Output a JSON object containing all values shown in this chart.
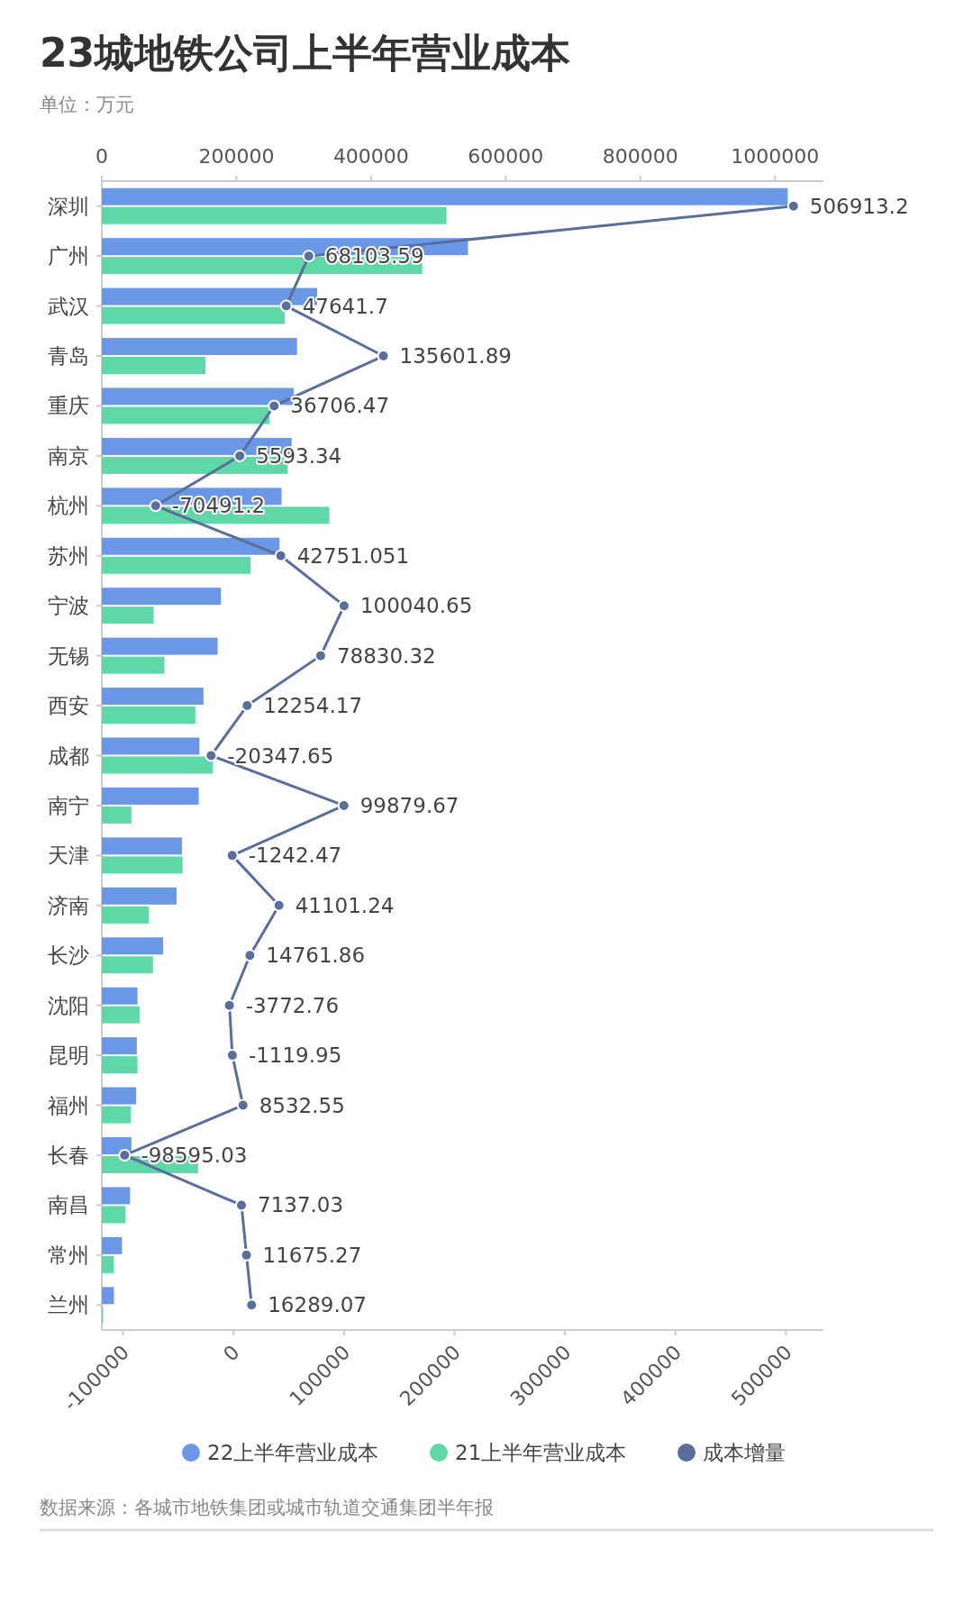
{
  "chart_data": {
    "type": "bar",
    "orientation": "horizontal",
    "title": "23城地铁公司上半年营业成本",
    "subtitle": "单位：万元",
    "categories": [
      "深圳",
      "广州",
      "武汉",
      "青岛",
      "重庆",
      "南京",
      "杭州",
      "苏州",
      "宁波",
      "无锡",
      "西安",
      "成都",
      "南宁",
      "天津",
      "济南",
      "长沙",
      "沈阳",
      "昆明",
      "福州",
      "长春",
      "南昌",
      "常州",
      "兰州"
    ],
    "series": [
      {
        "name": "22上半年营业成本",
        "color": "#6a98e6",
        "axis": "x2",
        "values": [
          1019000,
          544000,
          320000,
          290000,
          285000,
          282000,
          267000,
          264000,
          177000,
          172000,
          151000,
          145000,
          144000,
          119000,
          111000,
          91000,
          53000,
          52000,
          51000,
          44000,
          42000,
          30000,
          18000
        ]
      },
      {
        "name": "21上半年营业成本",
        "color": "#5fd8a8",
        "axis": "x2",
        "values": [
          512000,
          476000,
          272000,
          154000,
          249000,
          276000,
          338000,
          221000,
          77000,
          93000,
          139000,
          165000,
          44000,
          120000,
          70000,
          76000,
          56000,
          53000,
          43000,
          143000,
          35000,
          18000,
          2000
        ]
      },
      {
        "name": "成本增量",
        "color": "#5a6e9c",
        "type": "line",
        "values": [
          506913.2,
          68103.59,
          47641.7,
          135601.89,
          36706.47,
          5593.34,
          -70491.2,
          42751.051,
          100040.65,
          78830.32,
          12254.17,
          -20347.65,
          99879.67,
          -1242.47,
          41101.24,
          14761.86,
          -3772.76,
          -1119.95,
          8532.55,
          -98595.03,
          7137.03,
          11675.27,
          16289.07
        ],
        "value_labels": [
          "506913.2",
          "68103.59",
          "47641.7",
          "135601.89",
          "36706.47",
          "5593.34",
          "-70491.2",
          "42751.051",
          "100040.65",
          "78830.32",
          "12254.17",
          "-20347.65",
          "99879.67",
          "-1242.47",
          "41101.24",
          "14761.86",
          "-3772.76",
          "-1119.95",
          "8532.55",
          "-98595.03",
          "7137.03",
          "11675.27",
          "16289.07"
        ]
      }
    ],
    "x2lim": [
      0,
      1072000
    ],
    "x2ticks": [
      0,
      200000,
      400000,
      600000,
      800000,
      1000000
    ],
    "xlim": [
      -119300,
      534000
    ],
    "xticks": [
      -100000,
      0,
      100000,
      200000,
      300000,
      400000,
      500000
    ],
    "marker": "circle",
    "legend": "bottom",
    "annotations": [
      "数据来源：各城市地铁集团或城市轨道交通集团半年报"
    ]
  }
}
